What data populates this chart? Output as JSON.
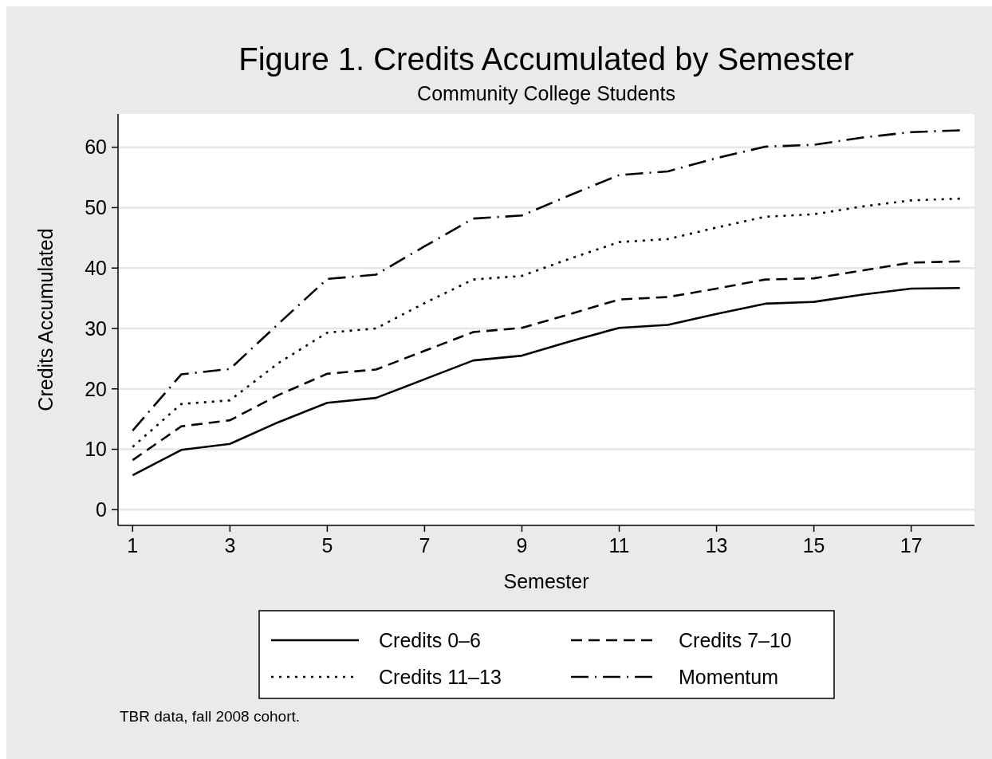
{
  "chart_data": {
    "type": "line",
    "title": "Figure 1. Credits Accumulated by Semester",
    "subtitle": "Community College Students",
    "xlabel": "Semester",
    "ylabel": "Credits Accumulated",
    "annotations": [
      "TBR data, fall 2008 cohort."
    ],
    "x": [
      1,
      2,
      3,
      4,
      5,
      6,
      7,
      8,
      9,
      10,
      11,
      12,
      13,
      14,
      15,
      16,
      17,
      18
    ],
    "xlim": [
      0.7,
      18.3
    ],
    "xticks": [
      1,
      3,
      5,
      7,
      9,
      11,
      13,
      15,
      17
    ],
    "ylim": [
      -2.6,
      65.5
    ],
    "yticks": [
      0,
      10,
      20,
      30,
      40,
      50,
      60
    ],
    "grid": "y",
    "legend": "bottom",
    "marker": "none",
    "series": [
      {
        "name": "Credits 0–6",
        "color": "#000000",
        "line_style": "solid",
        "values": [
          5.7,
          9.9,
          10.9,
          14.5,
          17.7,
          18.5,
          21.6,
          24.7,
          25.5,
          27.9,
          30.1,
          30.6,
          32.4,
          34.1,
          34.4,
          35.6,
          36.6,
          36.7
        ]
      },
      {
        "name": "Credits 7–10",
        "color": "#000000",
        "line_style": "dashed",
        "values": [
          8.2,
          13.8,
          14.8,
          19.0,
          22.5,
          23.2,
          26.3,
          29.4,
          30.1,
          32.4,
          34.8,
          35.2,
          36.6,
          38.1,
          38.3,
          39.6,
          40.9,
          41.1
        ]
      },
      {
        "name": "Credits 11–13",
        "color": "#000000",
        "line_style": "dotted",
        "values": [
          10.4,
          17.5,
          18.1,
          24.3,
          29.3,
          30.0,
          34.2,
          38.1,
          38.7,
          41.6,
          44.3,
          44.8,
          46.7,
          48.5,
          48.9,
          50.2,
          51.2,
          51.5
        ]
      },
      {
        "name": "Momentum",
        "color": "#000000",
        "line_style": "dashdot",
        "values": [
          13.1,
          22.4,
          23.3,
          30.8,
          38.2,
          38.9,
          43.6,
          48.2,
          48.7,
          52.1,
          55.4,
          56.0,
          58.2,
          60.1,
          60.4,
          61.6,
          62.5,
          62.8
        ]
      }
    ]
  }
}
